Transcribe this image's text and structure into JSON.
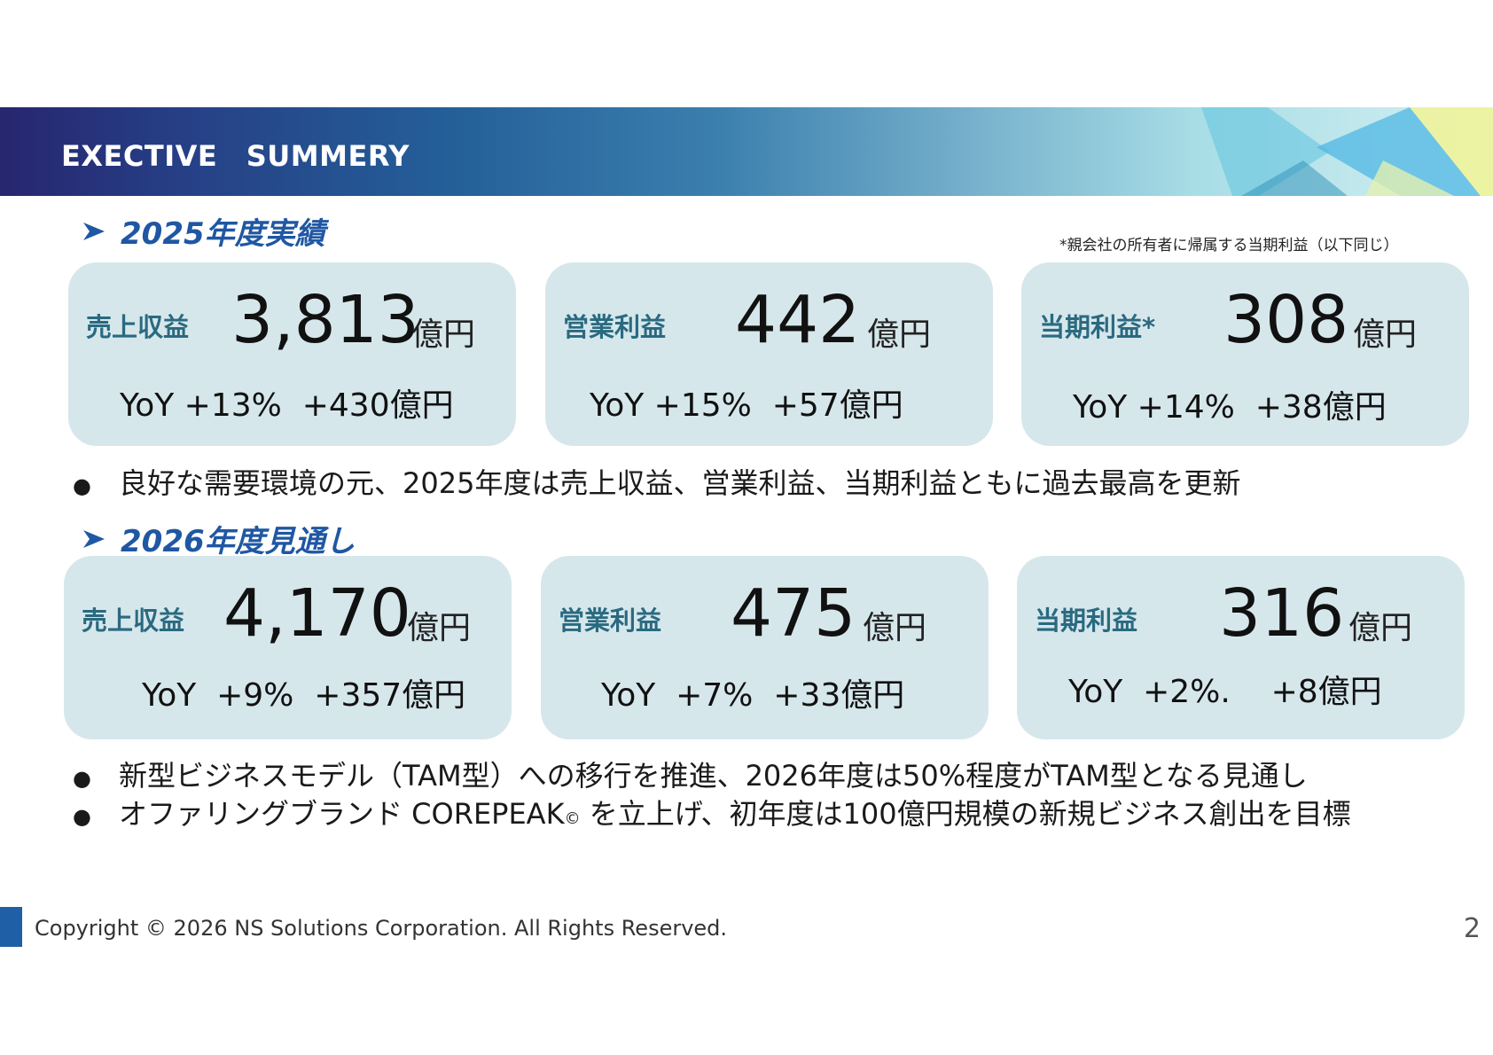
{
  "banner": {
    "title": "EXECTIVE　SUMMERY"
  },
  "section_2025": {
    "title": "2025年度実績",
    "note": "*親会社の所有者に帰属する当期利益（以下同じ）",
    "cards": [
      {
        "label": "売上収益",
        "value": "3,813",
        "unit": "億円",
        "yoy": "YoY +13%  +430億円"
      },
      {
        "label": "営業利益",
        "value": "442",
        "unit": "億円",
        "yoy": "YoY +15%  +57億円"
      },
      {
        "label": "当期利益*",
        "value": "308",
        "unit": "億円",
        "yoy": "YoY +14%  +38億円"
      }
    ],
    "bullets": [
      "良好な需要環境の元、2025年度は売上収益、営業利益、当期利益ともに過去最高を更新"
    ]
  },
  "section_2026": {
    "title": "2026年度見通し",
    "cards": [
      {
        "label": "売上収益",
        "value": "4,170",
        "unit": "億円",
        "yoy": "YoY  +9%  +357億円"
      },
      {
        "label": "営業利益",
        "value": "475",
        "unit": "億円",
        "yoy": "YoY  +7%  +33億円"
      },
      {
        "label": "当期利益",
        "value": "316",
        "unit": "億円",
        "yoy": "YoY  +2%.    +8億円"
      }
    ],
    "bullets": [
      {
        "text": "新型ビジネスモデル（TAM型）への移行を推進、2026年度は50%程度がTAM型となる見通し"
      },
      {
        "before": "オファリングブランド COREPEAK",
        "mark": "©",
        "after": " を立上げ、初年度は100億円規模の新規ビジネス創出を目標"
      }
    ]
  },
  "footer": {
    "copyright": "Copyright © 2026 NS Solutions Corporation. All Rights Reserved.",
    "page": "2"
  },
  "colors": {
    "heading": "#1f57a3",
    "card_bg": "#d6e7ec",
    "label": "#2a6a80",
    "footer_bar": "#1f5fa5"
  }
}
